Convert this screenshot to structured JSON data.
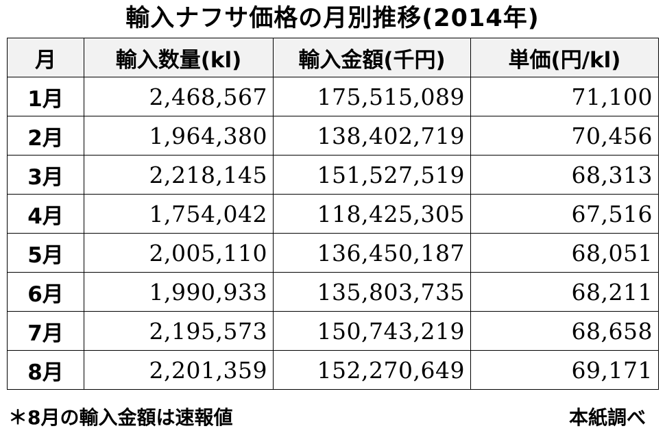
{
  "title": "輸入ナフサ価格の月別推移(2014年)",
  "table": {
    "headers": [
      "月",
      "輸入数量(kl)",
      "輸入金額(千円)",
      "単価(円/kl)"
    ],
    "rows": [
      {
        "month": "1月",
        "quantity": "2,468,567",
        "amount": "175,515,089",
        "unit_price": "71,100"
      },
      {
        "month": "2月",
        "quantity": "1,964,380",
        "amount": "138,402,719",
        "unit_price": "70,456"
      },
      {
        "month": "3月",
        "quantity": "2,218,145",
        "amount": "151,527,519",
        "unit_price": "68,313"
      },
      {
        "month": "4月",
        "quantity": "1,754,042",
        "amount": "118,425,305",
        "unit_price": "67,516"
      },
      {
        "month": "5月",
        "quantity": "2,005,110",
        "amount": "136,450,187",
        "unit_price": "68,051"
      },
      {
        "month": "6月",
        "quantity": "1,990,933",
        "amount": "135,803,735",
        "unit_price": "68,211"
      },
      {
        "month": "7月",
        "quantity": "2,195,573",
        "amount": "150,743,219",
        "unit_price": "68,658"
      },
      {
        "month": "8月",
        "quantity": "2,201,359",
        "amount": "152,270,649",
        "unit_price": "69,171"
      }
    ]
  },
  "footnote": "＊8月の輸入金額は速報値",
  "source": "本紙調べ"
}
